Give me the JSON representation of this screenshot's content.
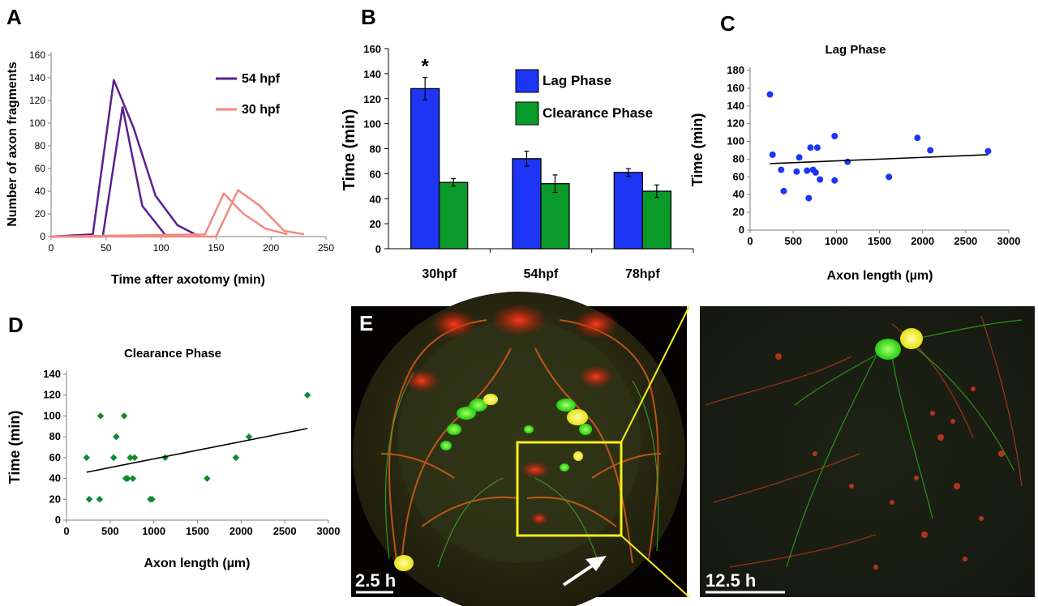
{
  "panel_letters": [
    "A",
    "B",
    "C",
    "D",
    "E"
  ],
  "chart_data": [
    {
      "panel": "A",
      "type": "line",
      "xlabel": "Time after axotomy (min)",
      "ylabel": "Number of axon fragments",
      "xlim": [
        0,
        250
      ],
      "ylim": [
        0,
        160
      ],
      "xticks": [
        0,
        50,
        100,
        150,
        200,
        250
      ],
      "yticks": [
        0,
        20,
        40,
        60,
        80,
        100,
        120,
        140,
        160
      ],
      "legend_position": "top-right",
      "series": [
        {
          "name": "54 hpf",
          "color": "#5b1f8f",
          "x": [
            0,
            38,
            57,
            75,
            95,
            115,
            135
          ],
          "y": [
            0,
            2,
            138,
            96,
            36,
            10,
            0
          ]
        },
        {
          "name": "",
          "color": "#5b1f8f",
          "x": [
            0,
            47,
            65,
            83,
            105
          ],
          "y": [
            0,
            0,
            114,
            27,
            0
          ]
        },
        {
          "name": "30 hpf",
          "color": "#f28a80",
          "x": [
            0,
            140,
            157,
            175,
            195,
            215
          ],
          "y": [
            0,
            2,
            38,
            20,
            7,
            2
          ]
        },
        {
          "name": "",
          "color": "#f28a80",
          "x": [
            0,
            150,
            170,
            190,
            212,
            230
          ],
          "y": [
            0,
            0,
            41,
            27,
            5,
            2
          ]
        }
      ]
    },
    {
      "panel": "B",
      "type": "bar",
      "ylabel": "Time (min)",
      "ylim": [
        0,
        160
      ],
      "yticks": [
        0,
        20,
        40,
        60,
        80,
        100,
        120,
        140,
        160
      ],
      "categories": [
        "30hpf",
        "54hpf",
        "78hpf"
      ],
      "series": [
        {
          "name": "Lag Phase",
          "color": "#1d35f5",
          "values": [
            128,
            72,
            61
          ],
          "errors": [
            9,
            6,
            3
          ]
        },
        {
          "name": "Clearance Phase",
          "color": "#0a9a2a",
          "values": [
            53,
            52,
            46
          ],
          "errors": [
            3,
            7,
            5
          ]
        }
      ],
      "annotation": "*",
      "legend_position": "top-right"
    },
    {
      "panel": "C",
      "type": "scatter",
      "title": "Lag Phase",
      "xlabel": "Axon length (µm)",
      "ylabel": "Time (min)",
      "xlim": [
        0,
        3000
      ],
      "ylim": [
        0,
        180
      ],
      "xticks": [
        0,
        500,
        1000,
        1500,
        2000,
        2500,
        3000
      ],
      "yticks": [
        0,
        20,
        40,
        60,
        80,
        100,
        120,
        140,
        160,
        180
      ],
      "color": "#1d35f5",
      "x": [
        230,
        260,
        360,
        390,
        540,
        570,
        660,
        680,
        700,
        730,
        760,
        780,
        810,
        980,
        980,
        1130,
        1610,
        1940,
        2090,
        2760
      ],
      "y": [
        153,
        85,
        68,
        44,
        66,
        82,
        67,
        36,
        93,
        68,
        65,
        93,
        57,
        106,
        56,
        77,
        60,
        104,
        90,
        89
      ],
      "trendline": [
        [
          230,
          75
        ],
        [
          2760,
          85
        ]
      ]
    },
    {
      "panel": "D",
      "type": "scatter",
      "title": "Clearance Phase",
      "xlabel": "Axon length (µm)",
      "ylabel": "Time (min)",
      "xlim": [
        0,
        3000
      ],
      "ylim": [
        0,
        140
      ],
      "xticks": [
        0,
        500,
        1000,
        1500,
        2000,
        2500,
        3000
      ],
      "yticks": [
        0,
        20,
        40,
        60,
        80,
        100,
        120,
        140
      ],
      "color": "#128a2a",
      "x": [
        230,
        260,
        380,
        390,
        540,
        570,
        660,
        680,
        700,
        730,
        760,
        780,
        980,
        960,
        1130,
        1610,
        1940,
        2090,
        2760
      ],
      "y": [
        60,
        20,
        20,
        100,
        60,
        80,
        100,
        40,
        40,
        60,
        40,
        60,
        20,
        20,
        60,
        40,
        60,
        80,
        120
      ],
      "trendline": [
        [
          230,
          46
        ],
        [
          2760,
          88
        ]
      ]
    }
  ],
  "images": {
    "panel_e_scale_label": "2.5 h",
    "panel_e_zoom_scale_label": "12.5 h"
  }
}
